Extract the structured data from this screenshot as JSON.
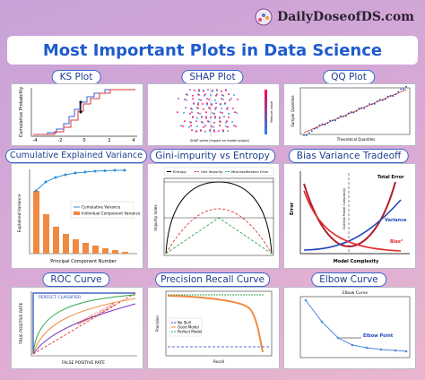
{
  "header": {
    "brand": "DailyDoseofDS.com",
    "title": "Most Important Plots in Data Science"
  },
  "panels": [
    {
      "title": "KS Plot",
      "labels": [
        "Cumulative Probability"
      ],
      "ticks": [
        "-4",
        "-2",
        "0",
        "2",
        "4"
      ]
    },
    {
      "title": "SHAP Plot",
      "labels": [
        "SHAP value (impact on model output)",
        "Feature value"
      ]
    },
    {
      "title": "QQ Plot",
      "labels": [
        "Theoretical Quantiles",
        "Sample Quantiles"
      ]
    },
    {
      "title": "Cumulative Explained Variance",
      "labels": [
        "Cumulative Variance",
        "Individual Component Variance",
        "Principal Component Number",
        "Explained Variance"
      ]
    },
    {
      "title": "Gini-impurity vs Entropy",
      "labels": [
        "Entropy",
        "Gini Impurity",
        "Misclassification Error",
        "Impurity Index"
      ]
    },
    {
      "title": "Bias Variance Tradeoff",
      "labels": [
        "Total Error",
        "Variance",
        "Bias²",
        "Error",
        "Model Complexity",
        "Optimal Model Complexity"
      ]
    },
    {
      "title": "ROC Curve",
      "labels": [
        "PERFECT CLASSIFIER",
        "RANDOM CLASSIFIER",
        "TRUE POSITIVE RATE",
        "FALSE POSITIVE RATE"
      ]
    },
    {
      "title": "Precision Recall Curve",
      "labels": [
        "No Skill",
        "Good Model",
        "Perfect Model",
        "Precision",
        "Recall"
      ]
    },
    {
      "title": "Elbow Curve",
      "labels": [
        "Elbow Curve",
        "Elbow Point"
      ]
    }
  ]
}
